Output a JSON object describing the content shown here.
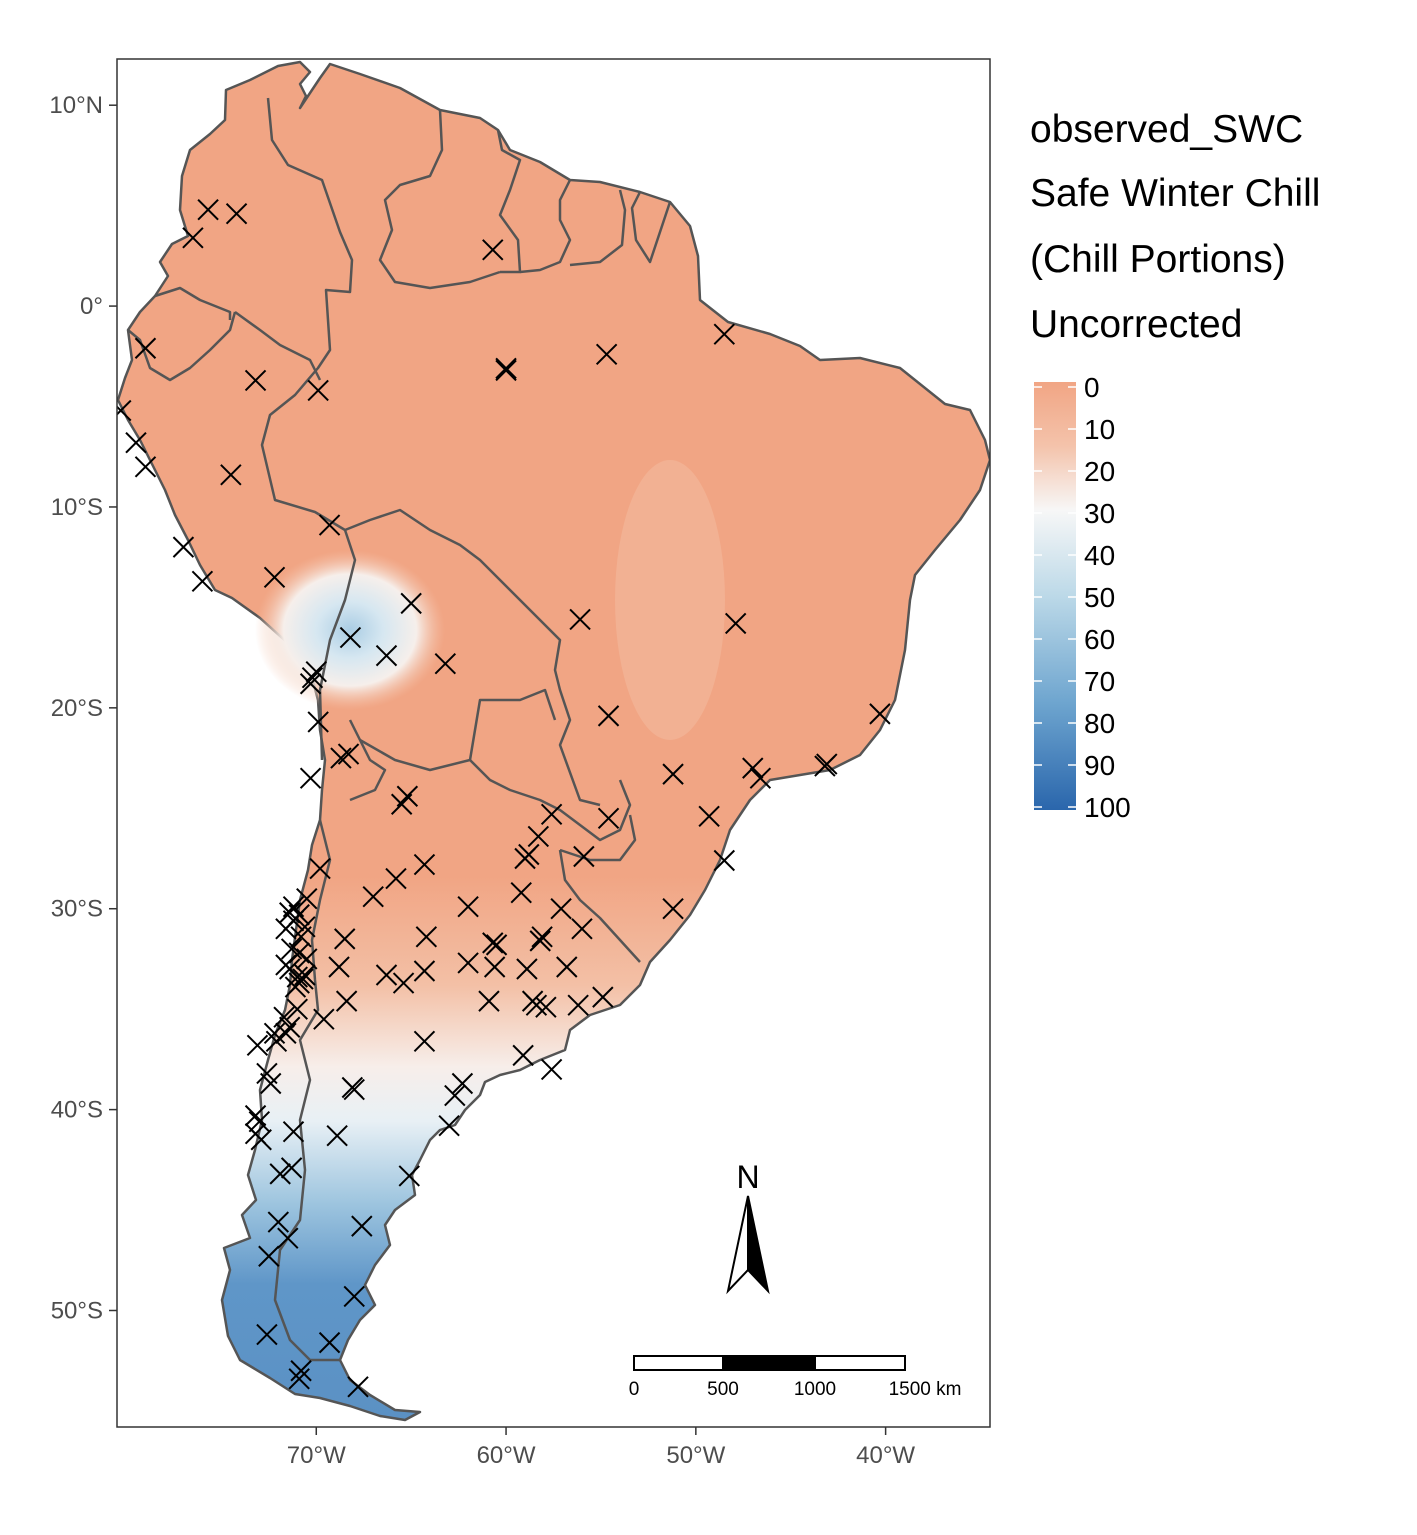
{
  "legend": {
    "title_lines": [
      "observed_SWC",
      "Safe Winter Chill",
      "(Chill Portions)",
      "Uncorrected"
    ],
    "ticks": [
      "0",
      "10",
      "20",
      "30",
      "40",
      "50",
      "60",
      "70",
      "80",
      "90",
      "100"
    ],
    "colors": {
      "low": "#f1a584",
      "mid": "#f7f7f7",
      "high": "#2a66ac"
    }
  },
  "axes": {
    "y_ticks": [
      {
        "label": "10°N",
        "lat": 10
      },
      {
        "label": "0°",
        "lat": 0
      },
      {
        "label": "10°S",
        "lat": -10
      },
      {
        "label": "20°S",
        "lat": -20
      },
      {
        "label": "30°S",
        "lat": -30
      },
      {
        "label": "40°S",
        "lat": -40
      },
      {
        "label": "50°S",
        "lat": -50
      }
    ],
    "x_ticks": [
      {
        "label": "70°W",
        "lon": -70
      },
      {
        "label": "60°W",
        "lon": -60
      },
      {
        "label": "50°W",
        "lon": -50
      },
      {
        "label": "40°W",
        "lon": -40
      }
    ],
    "lon_range": [
      -80.5,
      -34.5
    ],
    "lat_range": [
      -55.8,
      12.3
    ]
  },
  "north_arrow": {
    "label": "N"
  },
  "scale_bar": {
    "labels": [
      "0",
      "500",
      "1000",
      "1500 km"
    ]
  },
  "stations": [
    [
      -75.7,
      4.8
    ],
    [
      -74.2,
      4.6
    ],
    [
      -76.5,
      3.4
    ],
    [
      -60.7,
      2.8
    ],
    [
      -79.0,
      -2.1
    ],
    [
      -73.2,
      -3.7
    ],
    [
      -69.9,
      -4.2
    ],
    [
      -60.0,
      -3.1
    ],
    [
      -60.0,
      -3.2
    ],
    [
      -54.7,
      -2.4
    ],
    [
      -48.5,
      -1.4
    ],
    [
      -80.3,
      -5.2
    ],
    [
      -79.5,
      -6.8
    ],
    [
      -79.0,
      -8.0
    ],
    [
      -74.5,
      -8.4
    ],
    [
      -69.3,
      -10.9
    ],
    [
      -77.0,
      -12.0
    ],
    [
      -76.0,
      -13.7
    ],
    [
      -72.2,
      -13.5
    ],
    [
      -65.0,
      -14.8
    ],
    [
      -56.1,
      -15.6
    ],
    [
      -47.9,
      -15.8
    ],
    [
      -68.2,
      -16.5
    ],
    [
      -66.3,
      -17.4
    ],
    [
      -63.2,
      -17.8
    ],
    [
      -70.2,
      -18.5
    ],
    [
      -70.0,
      -18.2
    ],
    [
      -70.3,
      -18.8
    ],
    [
      -69.9,
      -20.7
    ],
    [
      -54.6,
      -20.4
    ],
    [
      -40.3,
      -20.3
    ],
    [
      -68.7,
      -22.5
    ],
    [
      -68.3,
      -22.3
    ],
    [
      -70.3,
      -23.5
    ],
    [
      -51.2,
      -23.3
    ],
    [
      -47.0,
      -23.0
    ],
    [
      -46.6,
      -23.5
    ],
    [
      -43.2,
      -22.9
    ],
    [
      -43.1,
      -22.8
    ],
    [
      -65.2,
      -24.4
    ],
    [
      -65.5,
      -24.8
    ],
    [
      -57.6,
      -25.3
    ],
    [
      -54.6,
      -25.5
    ],
    [
      -49.3,
      -25.4
    ],
    [
      -58.3,
      -26.4
    ],
    [
      -58.8,
      -27.3
    ],
    [
      -59.0,
      -27.5
    ],
    [
      -55.9,
      -27.4
    ],
    [
      -48.5,
      -27.6
    ],
    [
      -69.8,
      -28.0
    ],
    [
      -65.8,
      -28.5
    ],
    [
      -64.3,
      -27.8
    ],
    [
      -67.0,
      -29.4
    ],
    [
      -62.0,
      -29.9
    ],
    [
      -59.2,
      -29.2
    ],
    [
      -57.1,
      -30.0
    ],
    [
      -51.2,
      -30.0
    ],
    [
      -71.2,
      -29.9
    ],
    [
      -70.5,
      -29.5
    ],
    [
      -71.4,
      -30.2
    ],
    [
      -70.9,
      -30.3
    ],
    [
      -71.2,
      -30.6
    ],
    [
      -70.6,
      -30.9
    ],
    [
      -71.6,
      -31.0
    ],
    [
      -70.8,
      -31.4
    ],
    [
      -68.5,
      -31.5
    ],
    [
      -64.2,
      -31.4
    ],
    [
      -60.7,
      -31.7
    ],
    [
      -60.5,
      -31.8
    ],
    [
      -58.1,
      -31.4
    ],
    [
      -58.2,
      -31.6
    ],
    [
      -56.0,
      -31.0
    ],
    [
      -71.3,
      -32.0
    ],
    [
      -70.9,
      -32.2
    ],
    [
      -70.5,
      -32.5
    ],
    [
      -71.6,
      -32.8
    ],
    [
      -68.8,
      -32.9
    ],
    [
      -66.3,
      -33.3
    ],
    [
      -65.4,
      -33.7
    ],
    [
      -64.3,
      -33.1
    ],
    [
      -62.0,
      -32.7
    ],
    [
      -60.6,
      -32.9
    ],
    [
      -58.9,
      -33.0
    ],
    [
      -56.8,
      -32.9
    ],
    [
      -71.0,
      -33.4
    ],
    [
      -70.7,
      -33.5
    ],
    [
      -70.9,
      -33.7
    ],
    [
      -70.6,
      -33.3
    ],
    [
      -71.4,
      -33.0
    ],
    [
      -71.1,
      -33.9
    ],
    [
      -68.4,
      -34.6
    ],
    [
      -60.9,
      -34.6
    ],
    [
      -58.6,
      -34.6
    ],
    [
      -58.4,
      -34.8
    ],
    [
      -57.9,
      -34.9
    ],
    [
      -56.2,
      -34.8
    ],
    [
      -54.9,
      -34.4
    ],
    [
      -71.0,
      -35.0
    ],
    [
      -71.7,
      -35.4
    ],
    [
      -71.4,
      -35.9
    ],
    [
      -72.1,
      -36.6
    ],
    [
      -71.6,
      -36.2
    ],
    [
      -73.1,
      -36.8
    ],
    [
      -69.6,
      -35.5
    ],
    [
      -72.2,
      -36.2
    ],
    [
      -64.3,
      -36.6
    ],
    [
      -59.1,
      -37.3
    ],
    [
      -57.6,
      -38.0
    ],
    [
      -72.6,
      -38.2
    ],
    [
      -72.4,
      -38.7
    ],
    [
      -68.1,
      -38.9
    ],
    [
      -68.0,
      -39.0
    ],
    [
      -62.3,
      -38.7
    ],
    [
      -62.7,
      -39.3
    ],
    [
      -73.2,
      -40.3
    ],
    [
      -73.0,
      -40.6
    ],
    [
      -73.2,
      -41.2
    ],
    [
      -72.9,
      -41.5
    ],
    [
      -71.2,
      -41.1
    ],
    [
      -68.9,
      -41.3
    ],
    [
      -63.0,
      -40.8
    ],
    [
      -65.1,
      -43.3
    ],
    [
      -71.9,
      -43.2
    ],
    [
      -71.3,
      -42.9
    ],
    [
      -72.0,
      -45.6
    ],
    [
      -71.5,
      -46.4
    ],
    [
      -72.5,
      -47.3
    ],
    [
      -67.6,
      -45.8
    ],
    [
      -68.0,
      -49.3
    ],
    [
      -72.6,
      -51.2
    ],
    [
      -69.3,
      -51.6
    ],
    [
      -70.8,
      -53.0
    ],
    [
      -70.9,
      -53.4
    ],
    [
      -67.8,
      -53.8
    ]
  ]
}
